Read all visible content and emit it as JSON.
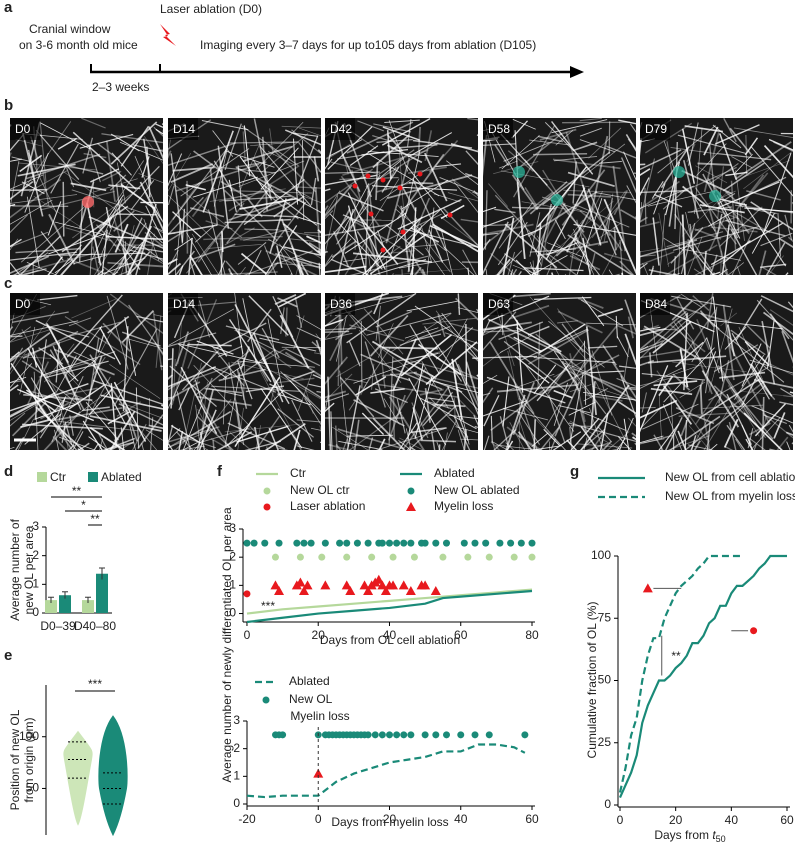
{
  "panel_labels": {
    "a": "a",
    "b": "b",
    "c": "c",
    "d": "d",
    "e": "e",
    "f": "f",
    "g": "g"
  },
  "timeline": {
    "laser": "Laser ablation (D0)",
    "window_1": "Cranial window",
    "window_2": "on 3-6 month old mice",
    "imaging": "Imaging every 3–7 days for up to105 days from ablation (D105)",
    "duration": "2–3 weeks"
  },
  "images": {
    "b": [
      "D0",
      "D14",
      "D42",
      "D58",
      "D79"
    ],
    "c": [
      "D0",
      "D14",
      "D36",
      "D63",
      "D84"
    ]
  },
  "f_ylabel": "Average number of newly differentiated OL per area",
  "chart_data": [
    {
      "type": "bar",
      "ylabel": [
        "Average number of",
        "new OL per area"
      ],
      "categories": [
        "D0–39",
        "D40–80"
      ],
      "series": [
        {
          "name": "Ctr",
          "color": "#b5d89b",
          "values": [
            0.45,
            0.45
          ],
          "errors": [
            0.1,
            0.1
          ]
        },
        {
          "name": "Ablated",
          "color": "#1a8a78",
          "values": [
            0.62,
            1.37
          ],
          "errors": [
            0.12,
            0.2
          ]
        }
      ],
      "ylim": [
        0,
        3
      ],
      "yticks": [
        0,
        1,
        2,
        3
      ],
      "annotations": [
        "**",
        "*",
        "**"
      ]
    },
    {
      "type": "violin",
      "ylabel": [
        "Position of new OL",
        "from origin (μm)"
      ],
      "series": [
        {
          "color": "#cde6b8",
          "min": 15,
          "q1": 60,
          "median": 78,
          "q3": 95,
          "max": 105
        },
        {
          "color": "#1a8a78",
          "min": 5,
          "q1": 35,
          "median": 50,
          "q3": 65,
          "max": 120
        }
      ],
      "ylim": [
        5,
        150
      ],
      "yticks": [
        50,
        100
      ],
      "annotations": [
        "***"
      ]
    },
    {
      "type": "line",
      "xlabel": "Days from OL cell ablation",
      "xlim": [
        -1,
        80
      ],
      "xticks": [
        0,
        20,
        40,
        60,
        80
      ],
      "ylim": [
        -0.3,
        3
      ],
      "yticks": [
        0,
        1,
        2,
        3
      ],
      "series": [
        {
          "name": "Ctr",
          "color": "#b5d89b",
          "marker": "line",
          "x": [
            0,
            10,
            20,
            30,
            40,
            50,
            60,
            70,
            80
          ],
          "values": [
            0,
            0.15,
            0.25,
            0.35,
            0.45,
            0.55,
            0.65,
            0.75,
            0.85
          ]
        },
        {
          "name": "New OL ctr",
          "color": "#b5d89b",
          "marker": "dot",
          "x": [
            8,
            15,
            21,
            28,
            35,
            41,
            47,
            55,
            62,
            68,
            75,
            80
          ],
          "values": [
            2,
            2,
            2,
            2,
            2,
            2,
            2,
            2,
            2,
            2,
            2,
            2
          ]
        },
        {
          "name": "Laser ablation",
          "color": "#e8191e",
          "marker": "dot",
          "x": [
            0
          ],
          "values": [
            0.7
          ]
        },
        {
          "name": "Ablated",
          "color": "#1a8a78",
          "marker": "line",
          "x": [
            0,
            10,
            20,
            30,
            40,
            50,
            55,
            60,
            70,
            80
          ],
          "values": [
            -0.3,
            -0.15,
            0,
            0.1,
            0.2,
            0.35,
            0.55,
            0.6,
            0.7,
            0.8
          ]
        },
        {
          "name": "New OL ablated",
          "color": "#1a8a78",
          "marker": "dot",
          "x": [
            0,
            2,
            5,
            9,
            14,
            16,
            18,
            22,
            26,
            28,
            31,
            34,
            37,
            38,
            40,
            42,
            44,
            46,
            49,
            50,
            53,
            56,
            61,
            64,
            67,
            71,
            74,
            77,
            80
          ],
          "values": [
            2.5,
            2.5,
            2.5,
            2.5,
            2.5,
            2.5,
            2.5,
            2.5,
            2.5,
            2.5,
            2.5,
            2.5,
            2.5,
            2.5,
            2.5,
            2.5,
            2.5,
            2.5,
            2.5,
            2.5,
            2.5,
            2.5,
            2.5,
            2.5,
            2.5,
            2.5,
            2.5,
            2.5,
            2.5
          ]
        },
        {
          "name": "Myelin loss",
          "color": "#e8191e",
          "marker": "triangle",
          "x": [
            8,
            9,
            14,
            15,
            16,
            17,
            22,
            28,
            29,
            33,
            34,
            35,
            36,
            37,
            38,
            39,
            40,
            41,
            44,
            46,
            49,
            50,
            53
          ],
          "values": [
            1,
            0.8,
            1,
            1.1,
            0.8,
            1,
            1,
            1,
            0.8,
            1,
            0.8,
            1,
            1.1,
            1.2,
            1,
            0.8,
            1,
            1,
            1,
            0.8,
            1,
            1,
            0.8
          ]
        }
      ],
      "annotations": [
        "***"
      ]
    },
    {
      "type": "line",
      "xlabel": "Days from myelin loss",
      "xlim": [
        -20,
        60
      ],
      "xticks": [
        -20,
        0,
        20,
        40,
        60
      ],
      "ylim": [
        0,
        3
      ],
      "yticks": [
        0,
        1,
        2,
        3
      ],
      "series": [
        {
          "name": "Ablated",
          "color": "#1a8a78",
          "marker": "line",
          "dashed": true,
          "x": [
            -20,
            -15,
            -10,
            -5,
            0,
            5,
            10,
            15,
            20,
            25,
            30,
            35,
            40,
            45,
            50,
            55,
            58
          ],
          "values": [
            0.3,
            0.25,
            0.3,
            0.3,
            0.3,
            0.8,
            1.1,
            1.3,
            1.5,
            1.6,
            1.7,
            1.9,
            1.9,
            2.15,
            2.15,
            2.05,
            1.85
          ]
        },
        {
          "name": "New OL",
          "color": "#1a8a78",
          "marker": "dot",
          "x": [
            -12,
            -11,
            -10,
            0,
            2,
            3,
            4,
            5,
            6,
            7,
            8,
            9,
            10,
            11,
            12,
            13,
            14,
            16,
            18,
            20,
            22,
            24,
            26,
            30,
            33,
            36,
            40,
            44,
            48,
            58
          ],
          "values": [
            2.5,
            2.5,
            2.5,
            2.5,
            2.5,
            2.5,
            2.5,
            2.5,
            2.5,
            2.5,
            2.5,
            2.5,
            2.5,
            2.5,
            2.5,
            2.5,
            2.5,
            2.5,
            2.5,
            2.5,
            2.5,
            2.5,
            2.5,
            2.5,
            2.5,
            2.5,
            2.5,
            2.5,
            2.5,
            2.5
          ]
        },
        {
          "color": "#e8191e",
          "marker": "triangle",
          "x": [
            0
          ],
          "values": [
            1.1
          ]
        }
      ],
      "annotations": [
        "Myelin loss"
      ]
    },
    {
      "type": "line",
      "ylabel": "Cumulative fraction of OL (%)",
      "xlabel": "Days from ",
      "xlabel_var": "t",
      "xlabel_sub": "50",
      "xlim": [
        0,
        60
      ],
      "xticks": [
        0,
        20,
        40,
        60
      ],
      "ylim": [
        0,
        100
      ],
      "yticks": [
        0,
        25,
        50,
        75,
        100
      ],
      "series": [
        {
          "name": "New OL from cell ablation",
          "color": "#1a8a78",
          "marker": "line",
          "x": [
            0,
            2,
            4,
            6,
            8,
            10,
            12,
            14,
            16,
            18,
            20,
            22,
            24,
            26,
            28,
            30,
            32,
            34,
            36,
            38,
            40,
            42,
            44,
            46,
            48,
            50,
            52,
            54,
            56,
            58,
            60
          ],
          "values": [
            3,
            8,
            13,
            20,
            33,
            40,
            45,
            50,
            50,
            52,
            55,
            57,
            60,
            65,
            65,
            68,
            73,
            75,
            80,
            80,
            85,
            88,
            88,
            90,
            92,
            95,
            97,
            100,
            100,
            100,
            100
          ]
        },
        {
          "name": "New OL from myelin loss",
          "color": "#1a8a78",
          "marker": "line",
          "dashed": true,
          "x": [
            0,
            2,
            4,
            6,
            8,
            10,
            12,
            14,
            16,
            18,
            20,
            22,
            24,
            26,
            28,
            30,
            32,
            34,
            36,
            38,
            40,
            42,
            44
          ],
          "values": [
            5,
            15,
            28,
            35,
            50,
            60,
            67,
            67,
            75,
            80,
            85,
            88,
            90,
            92,
            95,
            97,
            100,
            100,
            100,
            100,
            100,
            100,
            100
          ]
        },
        {
          "color": "#e8191e",
          "marker": "triangle",
          "x": [
            10
          ],
          "values": [
            87
          ]
        },
        {
          "color": "#e8191e",
          "marker": "dot",
          "x": [
            48
          ],
          "values": [
            70
          ]
        }
      ],
      "annotations": [
        "**"
      ]
    }
  ]
}
